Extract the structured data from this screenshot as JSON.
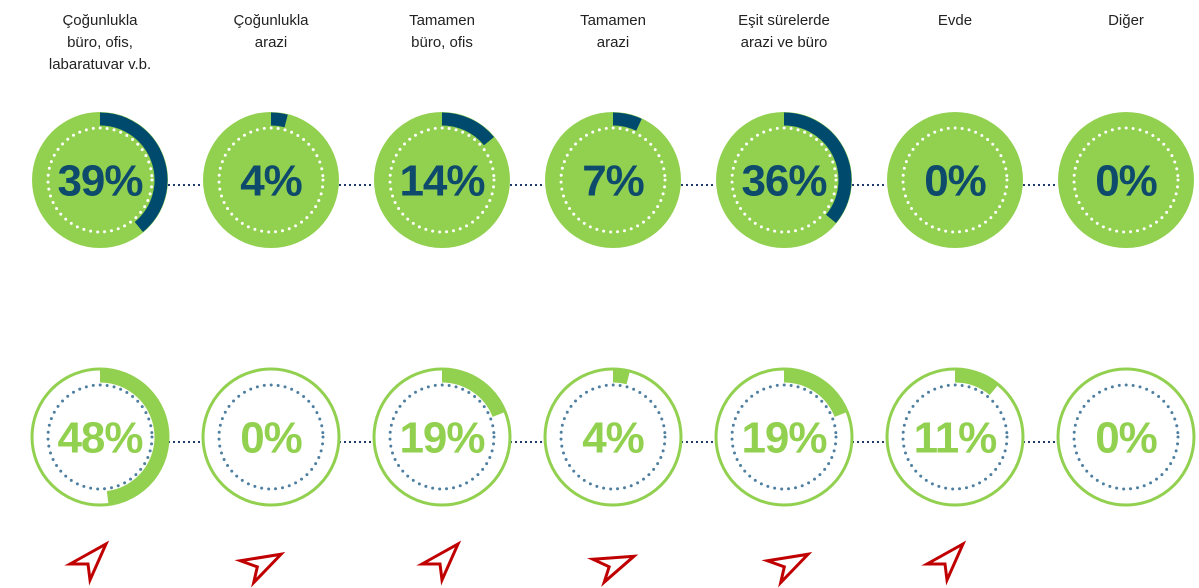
{
  "chart_data": {
    "type": "radial",
    "categories": [
      [
        "Çoğunlukla",
        "büro, ofis,",
        "labaratuvar v.b."
      ],
      [
        "Çoğunlukla",
        "arazi"
      ],
      [
        "Tamamen",
        "büro, ofis"
      ],
      [
        "Tamamen",
        "arazi"
      ],
      [
        "Eşit sürelerde",
        "arazi ve büro"
      ],
      [
        "Evde"
      ],
      [
        "Diğer"
      ]
    ],
    "series": [
      {
        "color": "#004a6e",
        "values": [
          39,
          4,
          14,
          7,
          36,
          0,
          0
        ],
        "value_labels": [
          "39%",
          "4%",
          "14%",
          "7%",
          "36%",
          "0%",
          "0%"
        ]
      },
      {
        "color": "#92d050",
        "values": [
          48,
          0,
          19,
          4,
          19,
          11,
          0
        ],
        "value_labels": [
          "48%",
          "0%",
          "19%",
          "4%",
          "19%",
          "11%",
          "0%"
        ]
      }
    ]
  }
}
